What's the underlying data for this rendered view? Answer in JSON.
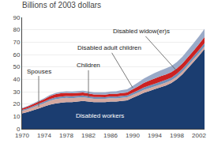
{
  "chart_data": {
    "type": "area",
    "stacked": true,
    "title": "Billions of 2003 dollars",
    "x": [
      1970,
      1971,
      1972,
      1973,
      1974,
      1975,
      1976,
      1977,
      1978,
      1979,
      1980,
      1981,
      1982,
      1983,
      1984,
      1985,
      1986,
      1987,
      1988,
      1989,
      1990,
      1991,
      1992,
      1993,
      1994,
      1995,
      1996,
      1997,
      1998,
      1999,
      2000,
      2001,
      2002,
      2003
    ],
    "series": [
      {
        "name": "Disabled workers",
        "color": "#1b3d70",
        "values": [
          12.5,
          13.5,
          15.0,
          16.5,
          18.0,
          19.5,
          20.5,
          21.0,
          21.5,
          21.5,
          22.0,
          22.5,
          22.0,
          21.5,
          21.5,
          21.5,
          22.0,
          22.0,
          22.5,
          23.0,
          25.0,
          27.0,
          29.0,
          30.5,
          32.0,
          33.5,
          35.0,
          37.0,
          40.0,
          44.0,
          49.0,
          54.0,
          59.0,
          64.5
        ]
      },
      {
        "name": "Spouses",
        "color": "#d4a8a0",
        "values": [
          2.0,
          2.2,
          2.4,
          2.6,
          2.8,
          3.2,
          3.4,
          3.5,
          3.5,
          3.3,
          3.2,
          3.0,
          2.9,
          2.8,
          2.8,
          2.7,
          2.7,
          2.6,
          2.6,
          2.5,
          2.5,
          2.4,
          2.4,
          2.4,
          2.3,
          2.3,
          2.3,
          2.2,
          2.2,
          2.2,
          2.1,
          2.1,
          2.1,
          2.0
        ]
      },
      {
        "name": "Children",
        "color": "#7090b8",
        "values": [
          0.8,
          0.9,
          1.0,
          1.1,
          1.2,
          1.3,
          1.4,
          1.5,
          1.5,
          1.5,
          1.4,
          1.4,
          1.4,
          1.4,
          1.4,
          1.4,
          1.4,
          1.4,
          1.5,
          1.5,
          1.6,
          1.7,
          1.9,
          2.0,
          2.1,
          2.2,
          2.2,
          2.2,
          2.3,
          2.3,
          2.4,
          2.5,
          2.6,
          2.7
        ]
      },
      {
        "name": "Disabled widow(er)s",
        "color": "#cc2222",
        "values": [
          1.2,
          1.4,
          1.6,
          1.8,
          2.0,
          2.4,
          2.6,
          2.7,
          2.6,
          2.5,
          2.5,
          2.4,
          2.2,
          2.1,
          2.0,
          2.0,
          2.1,
          2.2,
          2.3,
          2.4,
          2.8,
          3.2,
          3.7,
          4.0,
          4.3,
          4.4,
          4.4,
          4.4,
          4.3,
          4.3,
          4.4,
          4.5,
          4.7,
          5.0
        ]
      },
      {
        "name": "Disabled adult children",
        "color": "#9aaac8",
        "values": [
          0.4,
          0.5,
          0.6,
          0.7,
          0.8,
          0.9,
          1.0,
          1.1,
          1.2,
          1.3,
          1.4,
          1.5,
          1.6,
          1.7,
          1.8,
          1.9,
          2.0,
          2.1,
          2.3,
          2.5,
          2.8,
          3.2,
          3.6,
          4.0,
          4.4,
          4.7,
          4.9,
          5.0,
          5.2,
          5.4,
          5.7,
          6.0,
          6.3,
          6.6
        ]
      }
    ],
    "xlim": [
      1970,
      2003
    ],
    "xticks": [
      1970,
      1974,
      1978,
      1982,
      1986,
      1990,
      1994,
      1998,
      2002
    ],
    "ylim": [
      0,
      90
    ],
    "yticks": [
      0,
      10,
      20,
      30,
      40,
      50,
      60,
      70,
      80,
      90
    ],
    "grid": true
  }
}
